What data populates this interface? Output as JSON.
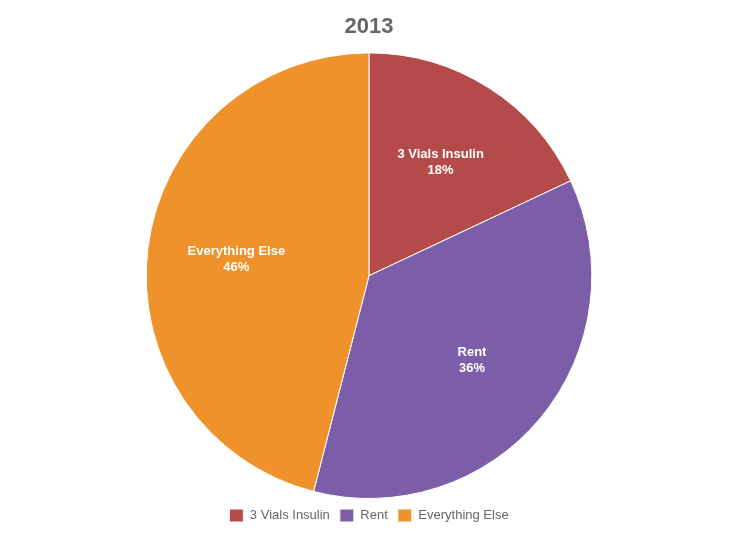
{
  "chart_data": {
    "type": "pie",
    "title": "2013",
    "categories": [
      "3 Vials Insulin",
      "Rent",
      "Everything Else"
    ],
    "values": [
      18,
      36,
      46
    ],
    "value_labels": [
      "18%",
      "36%",
      "46%"
    ],
    "colors": [
      "#b54a4a",
      "#7b5ea7",
      "#f0922b"
    ],
    "data_labels": true,
    "legend": "bottom"
  }
}
